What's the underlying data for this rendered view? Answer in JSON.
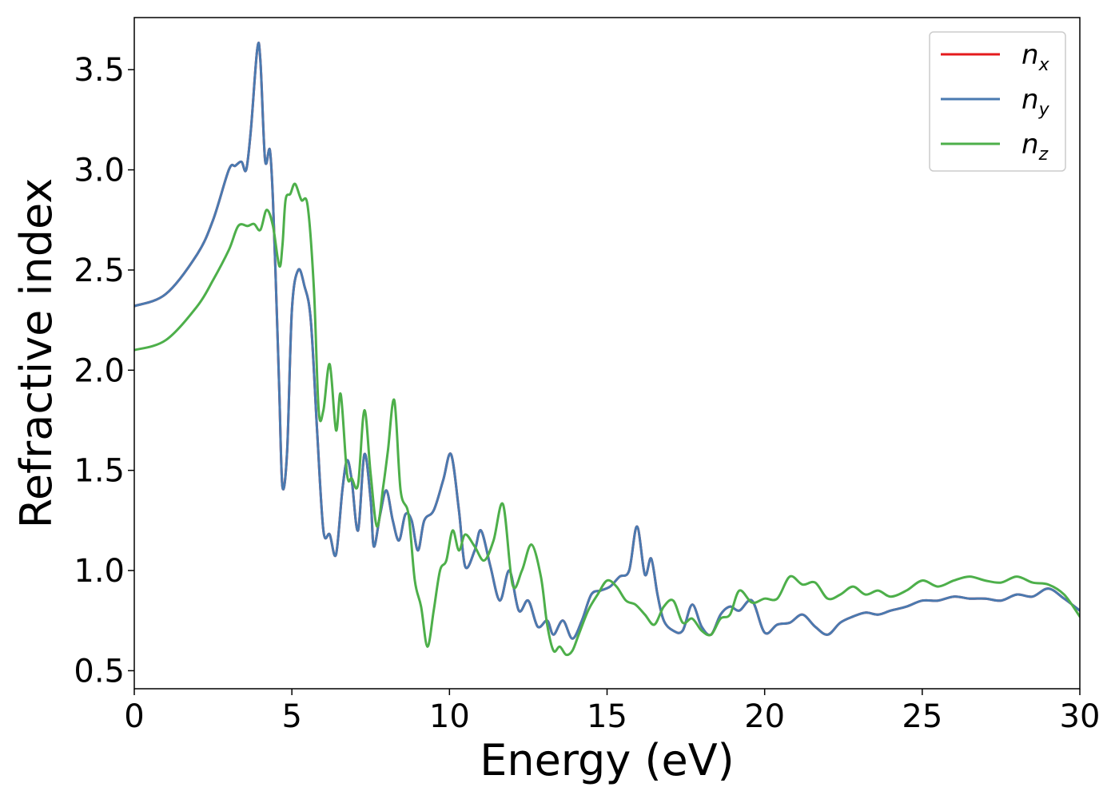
{
  "chart_data": {
    "type": "line",
    "xlabel": "Energy (eV)",
    "ylabel": "Refractive index",
    "xlim": [
      0,
      30
    ],
    "ylim": [
      0.41,
      3.76
    ],
    "xticks": [
      0,
      5,
      10,
      15,
      20,
      25,
      30
    ],
    "xtick_labels": [
      "0",
      "5",
      "10",
      "15",
      "20",
      "25",
      "30"
    ],
    "yticks": [
      0.5,
      1.0,
      1.5,
      2.0,
      2.5,
      3.0,
      3.5
    ],
    "ytick_labels": [
      "0.5",
      "1.0",
      "1.5",
      "2.0",
      "2.5",
      "3.0",
      "3.5"
    ],
    "grid": false,
    "legend_position": "top-right",
    "series": [
      {
        "name": "n_x",
        "label_base": "n",
        "label_sub": "x",
        "color": "#e41a1c",
        "x": [
          0,
          1,
          2,
          2.5,
          3,
          3.2,
          3.4,
          3.55,
          3.7,
          3.9,
          4.0,
          4.15,
          4.3,
          4.4,
          4.5,
          4.6,
          4.7,
          4.85,
          5.0,
          5.2,
          5.4,
          5.6,
          5.8,
          6.0,
          6.2,
          6.4,
          6.6,
          6.75,
          6.9,
          7.1,
          7.3,
          7.5,
          7.6,
          7.8,
          8.0,
          8.2,
          8.4,
          8.6,
          8.8,
          9.0,
          9.2,
          9.5,
          9.8,
          10.05,
          10.3,
          10.5,
          10.8,
          11.0,
          11.3,
          11.6,
          11.9,
          12.2,
          12.5,
          12.8,
          13.1,
          13.3,
          13.6,
          13.9,
          14.2,
          14.5,
          14.8,
          15.1,
          15.4,
          15.7,
          15.95,
          16.2,
          16.4,
          16.6,
          16.8,
          17.1,
          17.4,
          17.7,
          18.0,
          18.3,
          18.6,
          18.9,
          19.2,
          19.6,
          20.0,
          20.4,
          20.8,
          21.2,
          21.6,
          22.0,
          22.4,
          22.8,
          23.2,
          23.6,
          24.0,
          24.5,
          25.0,
          25.5,
          26.0,
          26.5,
          27.0,
          27.5,
          28.0,
          28.5,
          29.0,
          29.5,
          30.0
        ],
        "y": [
          2.32,
          2.38,
          2.58,
          2.75,
          3.0,
          3.02,
          3.04,
          3.0,
          3.2,
          3.6,
          3.55,
          3.05,
          3.1,
          2.85,
          2.4,
          1.9,
          1.42,
          1.6,
          2.3,
          2.5,
          2.42,
          2.25,
          1.7,
          1.2,
          1.18,
          1.08,
          1.4,
          1.55,
          1.45,
          1.2,
          1.58,
          1.35,
          1.12,
          1.28,
          1.4,
          1.25,
          1.15,
          1.28,
          1.25,
          1.1,
          1.25,
          1.3,
          1.45,
          1.58,
          1.3,
          1.02,
          1.1,
          1.2,
          1.02,
          0.85,
          1.0,
          0.8,
          0.85,
          0.72,
          0.75,
          0.68,
          0.75,
          0.66,
          0.75,
          0.88,
          0.9,
          0.92,
          0.97,
          1.0,
          1.22,
          0.98,
          1.06,
          0.88,
          0.75,
          0.7,
          0.7,
          0.83,
          0.72,
          0.68,
          0.78,
          0.82,
          0.8,
          0.85,
          0.69,
          0.73,
          0.74,
          0.78,
          0.72,
          0.68,
          0.74,
          0.77,
          0.79,
          0.78,
          0.8,
          0.82,
          0.85,
          0.85,
          0.87,
          0.86,
          0.86,
          0.85,
          0.88,
          0.87,
          0.91,
          0.86,
          0.8
        ]
      },
      {
        "name": "n_y",
        "label_base": "n",
        "label_sub": "y",
        "color": "#4a7ab0",
        "x": [
          0,
          1,
          2,
          2.5,
          3,
          3.2,
          3.4,
          3.55,
          3.7,
          3.9,
          4.0,
          4.15,
          4.3,
          4.4,
          4.5,
          4.6,
          4.7,
          4.85,
          5.0,
          5.2,
          5.4,
          5.6,
          5.8,
          6.0,
          6.2,
          6.4,
          6.6,
          6.75,
          6.9,
          7.1,
          7.3,
          7.5,
          7.6,
          7.8,
          8.0,
          8.2,
          8.4,
          8.6,
          8.8,
          9.0,
          9.2,
          9.5,
          9.8,
          10.05,
          10.3,
          10.5,
          10.8,
          11.0,
          11.3,
          11.6,
          11.9,
          12.2,
          12.5,
          12.8,
          13.1,
          13.3,
          13.6,
          13.9,
          14.2,
          14.5,
          14.8,
          15.1,
          15.4,
          15.7,
          15.95,
          16.2,
          16.4,
          16.6,
          16.8,
          17.1,
          17.4,
          17.7,
          18.0,
          18.3,
          18.6,
          18.9,
          19.2,
          19.6,
          20.0,
          20.4,
          20.8,
          21.2,
          21.6,
          22.0,
          22.4,
          22.8,
          23.2,
          23.6,
          24.0,
          24.5,
          25.0,
          25.5,
          26.0,
          26.5,
          27.0,
          27.5,
          28.0,
          28.5,
          29.0,
          29.5,
          30.0
        ],
        "y": [
          2.32,
          2.38,
          2.58,
          2.75,
          3.0,
          3.02,
          3.04,
          3.0,
          3.2,
          3.6,
          3.55,
          3.05,
          3.1,
          2.85,
          2.4,
          1.9,
          1.42,
          1.6,
          2.3,
          2.5,
          2.42,
          2.25,
          1.7,
          1.2,
          1.18,
          1.08,
          1.4,
          1.55,
          1.45,
          1.2,
          1.58,
          1.35,
          1.12,
          1.28,
          1.4,
          1.25,
          1.15,
          1.28,
          1.25,
          1.1,
          1.25,
          1.3,
          1.45,
          1.58,
          1.3,
          1.02,
          1.1,
          1.2,
          1.02,
          0.85,
          1.0,
          0.8,
          0.85,
          0.72,
          0.75,
          0.68,
          0.75,
          0.66,
          0.75,
          0.88,
          0.9,
          0.92,
          0.97,
          1.0,
          1.22,
          0.98,
          1.06,
          0.88,
          0.75,
          0.7,
          0.7,
          0.83,
          0.72,
          0.68,
          0.78,
          0.82,
          0.8,
          0.85,
          0.69,
          0.73,
          0.74,
          0.78,
          0.72,
          0.68,
          0.74,
          0.77,
          0.79,
          0.78,
          0.8,
          0.82,
          0.85,
          0.85,
          0.87,
          0.86,
          0.86,
          0.85,
          0.88,
          0.87,
          0.91,
          0.86,
          0.8
        ]
      },
      {
        "name": "n_z",
        "label_base": "n",
        "label_sub": "z",
        "color": "#4daf4a",
        "x": [
          0,
          1,
          2,
          2.5,
          3,
          3.3,
          3.6,
          3.8,
          4.0,
          4.2,
          4.4,
          4.6,
          4.7,
          4.8,
          4.95,
          5.1,
          5.3,
          5.5,
          5.7,
          5.85,
          6.0,
          6.2,
          6.4,
          6.55,
          6.75,
          6.9,
          7.1,
          7.3,
          7.5,
          7.7,
          7.9,
          8.05,
          8.25,
          8.45,
          8.7,
          8.9,
          9.1,
          9.3,
          9.5,
          9.7,
          9.9,
          10.1,
          10.3,
          10.5,
          10.8,
          11.1,
          11.4,
          11.7,
          12.0,
          12.3,
          12.6,
          12.9,
          13.1,
          13.3,
          13.5,
          13.7,
          13.9,
          14.1,
          14.4,
          14.7,
          15.0,
          15.3,
          15.6,
          15.9,
          16.2,
          16.5,
          16.8,
          17.1,
          17.4,
          17.7,
          18.0,
          18.3,
          18.6,
          18.9,
          19.2,
          19.6,
          20.0,
          20.4,
          20.8,
          21.2,
          21.6,
          22.0,
          22.4,
          22.8,
          23.2,
          23.6,
          24.0,
          24.5,
          25.0,
          25.5,
          26.0,
          26.5,
          27.0,
          27.5,
          28.0,
          28.5,
          29.0,
          29.5,
          30.0
        ],
        "y": [
          2.1,
          2.15,
          2.32,
          2.45,
          2.6,
          2.72,
          2.72,
          2.73,
          2.7,
          2.8,
          2.72,
          2.52,
          2.62,
          2.85,
          2.88,
          2.93,
          2.85,
          2.82,
          2.4,
          1.8,
          1.8,
          2.03,
          1.7,
          1.88,
          1.48,
          1.46,
          1.43,
          1.8,
          1.48,
          1.22,
          1.42,
          1.6,
          1.85,
          1.4,
          1.28,
          0.95,
          0.82,
          0.62,
          0.8,
          1.0,
          1.05,
          1.2,
          1.1,
          1.18,
          1.12,
          1.05,
          1.15,
          1.33,
          0.93,
          1.0,
          1.13,
          0.97,
          0.73,
          0.6,
          0.62,
          0.58,
          0.6,
          0.68,
          0.8,
          0.88,
          0.95,
          0.92,
          0.85,
          0.83,
          0.78,
          0.73,
          0.82,
          0.85,
          0.74,
          0.76,
          0.7,
          0.68,
          0.76,
          0.78,
          0.9,
          0.84,
          0.86,
          0.86,
          0.97,
          0.93,
          0.94,
          0.86,
          0.88,
          0.92,
          0.88,
          0.9,
          0.87,
          0.9,
          0.95,
          0.92,
          0.95,
          0.97,
          0.95,
          0.94,
          0.97,
          0.94,
          0.93,
          0.88,
          0.77
        ]
      }
    ]
  }
}
